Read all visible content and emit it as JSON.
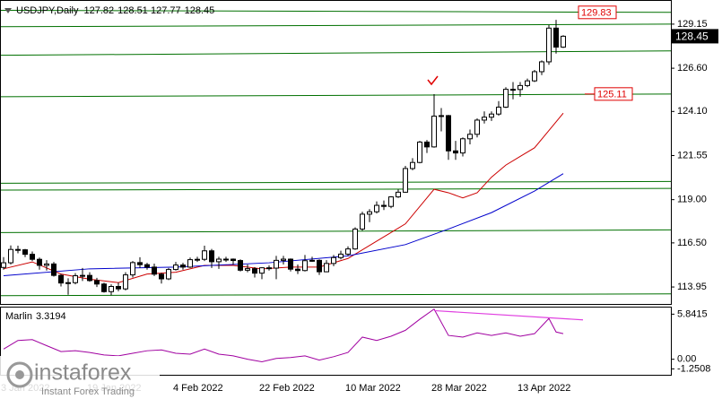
{
  "chart_data": {
    "type": "candlestick",
    "symbol": "USDJPY,Daily",
    "categories": [
      "3 Jan 2022",
      null,
      null,
      null,
      null,
      null,
      null,
      null,
      null,
      null,
      null,
      null,
      "19 Jan 2022",
      null,
      null,
      null,
      null,
      null,
      null,
      null,
      null,
      null,
      null,
      null,
      "4 Feb 2022",
      null,
      null,
      null,
      null,
      null,
      null,
      null,
      null,
      null,
      null,
      null,
      "22 Feb 2022",
      null,
      null,
      null,
      null,
      null,
      null,
      null,
      null,
      null,
      null,
      null,
      "10 Mar 2022",
      null,
      null,
      null,
      null,
      null,
      null,
      null,
      null,
      null,
      null,
      null,
      "28 Mar 2022",
      null,
      null,
      null,
      null,
      null,
      null,
      null,
      null,
      null,
      null,
      null,
      "13 Apr 2022",
      null,
      null,
      null,
      null,
      null,
      null
    ],
    "open": [
      115.08,
      115.35,
      116.12,
      116.1,
      115.84,
      115.55,
      115.2,
      115.28,
      114.62,
      114.18,
      114.2,
      114.6,
      114.62,
      114.32,
      114.12,
      113.68,
      113.98,
      113.84,
      114.65,
      115.36,
      115.24,
      115.1,
      114.69,
      114.42,
      114.96,
      115.22,
      115.1,
      115.53,
      115.55,
      116.04,
      115.41,
      115.56,
      115.56,
      115.48,
      114.92,
      115.01,
      114.75,
      115.06,
      115.04,
      115.49,
      115.56,
      114.98,
      114.9,
      115.47,
      115.49,
      114.83,
      115.31,
      115.65,
      115.85,
      116.15,
      117.3,
      118.16,
      118.3,
      118.67,
      118.61,
      119.16,
      119.43,
      120.8,
      121.15,
      122.33,
      122.05,
      123.83,
      123.86,
      121.82,
      121.7,
      122.52,
      122.78,
      123.6,
      123.77,
      123.95,
      124.35,
      125.38,
      125.37,
      125.6,
      125.87,
      126.4,
      126.97,
      128.92,
      127.82
    ],
    "high": [
      115.68,
      116.35,
      116.34,
      116.15,
      116.0,
      115.65,
      115.5,
      115.4,
      114.7,
      114.45,
      114.75,
      115.05,
      114.8,
      114.48,
      114.2,
      114.1,
      114.2,
      114.8,
      115.45,
      115.67,
      115.35,
      115.3,
      114.77,
      115.05,
      115.4,
      115.35,
      115.65,
      115.7,
      116.34,
      116.15,
      115.7,
      115.7,
      115.6,
      115.55,
      115.25,
      115.1,
      115.1,
      115.2,
      115.75,
      115.75,
      115.6,
      115.25,
      115.8,
      115.7,
      115.55,
      115.5,
      115.8,
      116.05,
      116.3,
      117.4,
      118.3,
      118.45,
      118.9,
      118.95,
      119.2,
      119.6,
      120.95,
      121.4,
      122.4,
      122.45,
      125.1,
      124.3,
      123.9,
      122.4,
      122.6,
      123.05,
      123.7,
      124.1,
      124.1,
      124.7,
      125.5,
      125.8,
      125.8,
      126.0,
      126.5,
      127.05,
      129.1,
      129.4,
      128.51
    ],
    "low": [
      114.95,
      115.25,
      115.9,
      115.68,
      115.45,
      114.95,
      114.9,
      114.55,
      113.98,
      113.5,
      114.1,
      114.3,
      114.25,
      113.95,
      113.62,
      113.47,
      113.7,
      113.75,
      114.5,
      115.05,
      114.95,
      114.58,
      114.15,
      114.35,
      114.9,
      114.95,
      115.05,
      115.4,
      115.45,
      115.05,
      115.0,
      115.4,
      115.25,
      114.85,
      114.8,
      114.5,
      114.4,
      114.9,
      114.4,
      115.25,
      114.85,
      114.7,
      114.85,
      115.4,
      114.65,
      114.8,
      115.15,
      115.55,
      115.75,
      116.1,
      117.2,
      117.7,
      118.2,
      118.4,
      118.5,
      119.1,
      119.4,
      120.7,
      121.1,
      121.7,
      122.0,
      122.95,
      121.3,
      121.3,
      121.5,
      122.2,
      122.6,
      123.4,
      123.55,
      123.85,
      124.3,
      124.8,
      124.95,
      125.5,
      125.8,
      126.2,
      126.8,
      127.45,
      127.77
    ],
    "close": [
      115.35,
      116.12,
      116.1,
      115.84,
      115.55,
      115.2,
      115.28,
      114.62,
      114.18,
      114.2,
      114.6,
      114.62,
      114.32,
      114.12,
      113.68,
      113.98,
      113.84,
      114.65,
      115.36,
      115.24,
      115.1,
      114.69,
      114.42,
      114.96,
      115.22,
      115.1,
      115.53,
      115.55,
      116.04,
      115.41,
      115.56,
      115.56,
      115.48,
      114.92,
      115.01,
      114.75,
      115.06,
      115.04,
      115.49,
      115.56,
      114.98,
      114.9,
      115.47,
      115.49,
      114.83,
      115.31,
      115.65,
      115.85,
      116.15,
      117.3,
      118.16,
      118.3,
      118.67,
      118.61,
      119.16,
      119.43,
      120.8,
      121.15,
      122.33,
      122.05,
      123.83,
      123.86,
      121.82,
      121.7,
      122.52,
      122.78,
      123.6,
      123.77,
      123.95,
      124.35,
      125.38,
      125.37,
      125.6,
      125.87,
      126.4,
      126.97,
      128.92,
      127.82,
      128.45
    ],
    "up_color": "#ffffff",
    "down_color": "#000000",
    "ylim": [
      113.02,
      130.39
    ],
    "yticks": [
      129.15,
      {
        "value": 126.6,
        "label": "126.60"
      },
      {
        "value": 124.1,
        "label": "124.10"
      },
      121.55,
      {
        "value": 119,
        "label": "119.00"
      },
      {
        "value": 116.5,
        "label": "116.50"
      },
      113.95
    ],
    "moving_averages": [
      {
        "color": "#cc0000",
        "x": [
          0,
          4,
          8,
          12,
          16,
          20,
          24,
          28,
          32,
          36,
          40,
          44,
          48,
          52,
          56,
          60,
          62,
          64,
          66,
          68,
          70,
          72,
          74,
          76,
          78
        ],
        "values": [
          115.0,
          115.4,
          114.7,
          114.4,
          114.2,
          114.7,
          114.8,
          115.2,
          115.2,
          115.0,
          115.1,
          115.1,
          115.6,
          116.6,
          117.6,
          119.6,
          119.4,
          119.1,
          119.4,
          120.3,
          121.0,
          121.5,
          122.0,
          123.0,
          124.0
        ]
      },
      {
        "color": "#0000cc",
        "x": [
          0,
          12,
          24,
          37,
          48,
          56,
          62,
          68,
          74,
          78
        ],
        "values": [
          114.6,
          115.0,
          115.1,
          115.35,
          115.75,
          116.4,
          117.3,
          118.25,
          119.5,
          120.5
        ]
      }
    ],
    "level_color": "#007000",
    "levels": [
      [
        129.95,
        129.83
      ],
      [
        129.0,
        129.15
      ],
      [
        127.35,
        127.6
      ],
      [
        124.95,
        125.11
      ],
      [
        119.95,
        120.05
      ],
      [
        119.55,
        119.65
      ],
      [
        117.1,
        117.25
      ],
      [
        113.45,
        113.55
      ]
    ],
    "price_label_color": "#e00000",
    "price_labels": [
      129.83,
      125.11
    ],
    "indicator": {
      "type": "line",
      "name": "Marlin",
      "color": "#a000a0",
      "x": [
        0,
        2,
        4,
        6,
        8,
        10,
        12,
        14,
        16,
        18,
        20,
        22,
        24,
        26,
        28,
        30,
        32,
        34,
        36,
        38,
        40,
        42,
        44,
        46,
        48,
        50,
        52,
        54,
        56,
        58,
        60,
        62,
        64,
        66,
        68,
        70,
        72,
        74,
        76,
        77,
        78
      ],
      "values": [
        1.32,
        2.43,
        2.54,
        1.76,
        0.99,
        1.1,
        0.88,
        0.55,
        0.44,
        0.77,
        1.1,
        1.21,
        0.77,
        0.66,
        1.32,
        0.66,
        0.44,
        0.0,
        -0.33,
        0.11,
        0.22,
        0.44,
        -0.11,
        0.33,
        0.88,
        2.87,
        2.43,
        2.98,
        3.75,
        5.18,
        6.5,
        3.09,
        2.87,
        3.42,
        3.09,
        3.42,
        2.98,
        3.31,
        5.29,
        3.53,
        3.3194
      ],
      "divergence": {
        "color": "#e040e0",
        "x": [
          60,
          80.75
        ],
        "values": [
          6.3,
          5.1
        ]
      },
      "ylim": [
        -1.9,
        6.7
      ],
      "yticks": [
        5.8415,
        {
          "value": 0,
          "label": "0.00"
        },
        -1.2508
      ]
    },
    "logo": "instaforex",
    "logo_tagline": "Instant Forex Trading"
  }
}
